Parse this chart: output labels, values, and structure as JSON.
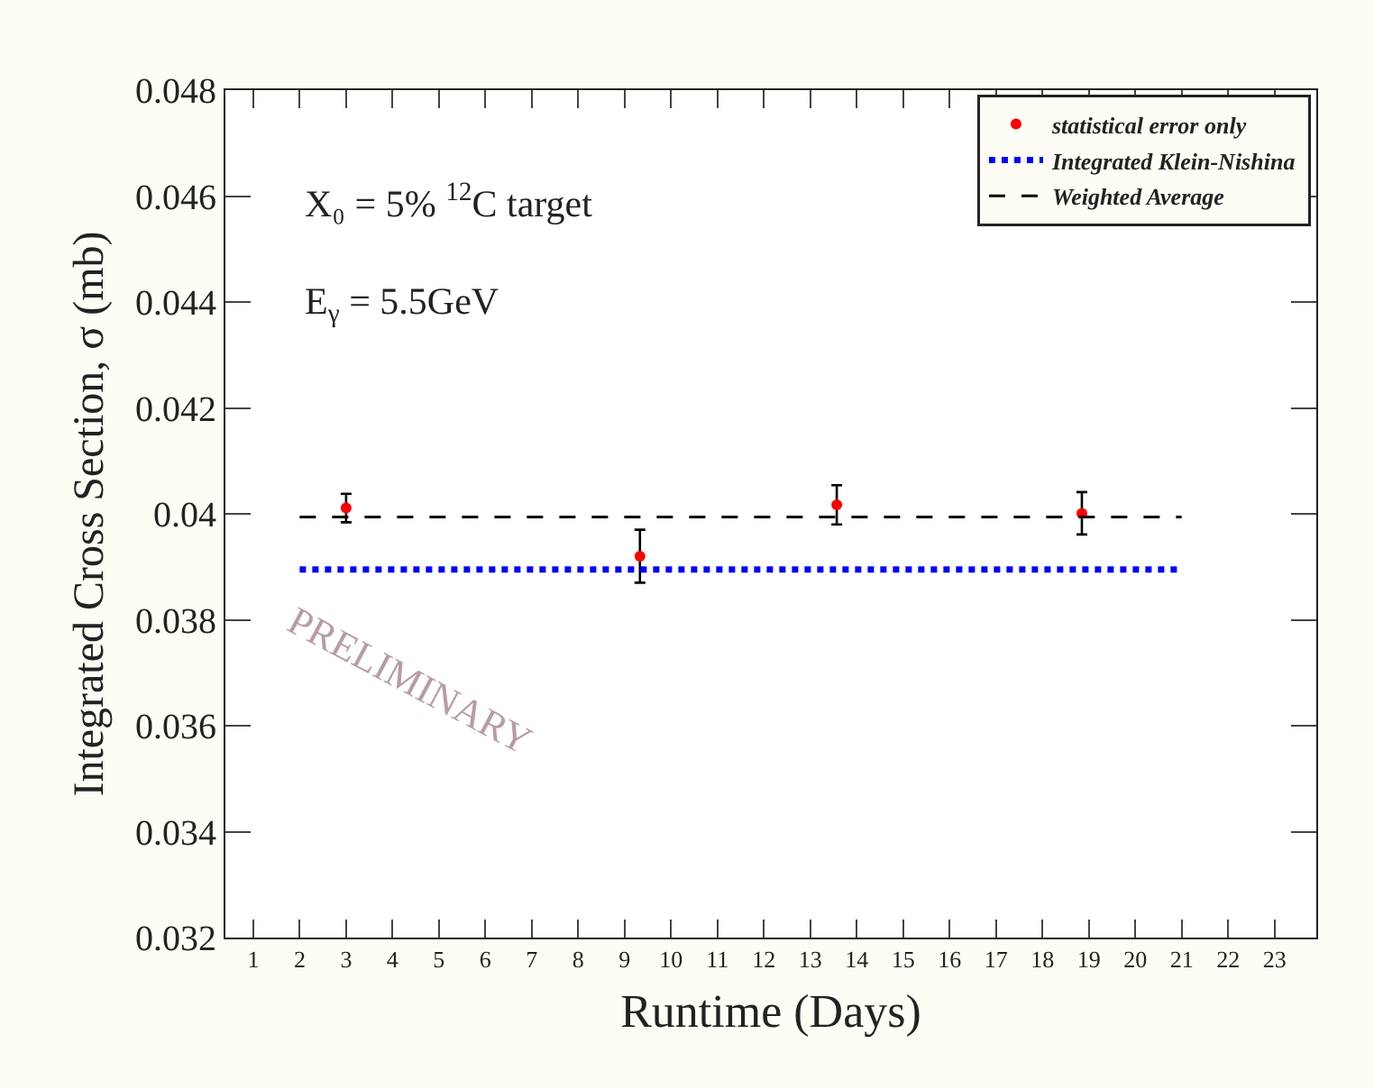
{
  "chart_data": {
    "type": "scatter",
    "xlabel": "Runtime (Days)",
    "ylabel": "Integrated Cross Section, σ (mb)",
    "xlim": [
      0.4,
      23.9
    ],
    "xticks": [
      1,
      2,
      3,
      4,
      5,
      6,
      7,
      8,
      9,
      10,
      11,
      12,
      13,
      14,
      15,
      16,
      17,
      18,
      19,
      20,
      21,
      22,
      23
    ],
    "ylim": [
      0.032,
      0.048
    ],
    "yticks": [
      0.032,
      0.034,
      0.036,
      0.038,
      0.04,
      0.042,
      0.044,
      0.046,
      0.048
    ],
    "series": [
      {
        "name": "statistical error only",
        "color": "#ff0000",
        "marker": "circle",
        "x": [
          3.0,
          9.33,
          13.57,
          18.85
        ],
        "values": [
          0.04011,
          0.0392,
          0.04017,
          0.04001
        ],
        "errors": [
          0.00027,
          0.0005,
          0.00037,
          0.0004
        ]
      },
      {
        "name": "Integrated Klein-Nishina",
        "type": "line",
        "color": "#0000ff",
        "line_style": "dotted",
        "x": [
          2,
          21
        ],
        "values": [
          0.03895,
          0.03895
        ]
      },
      {
        "name": "Weighted Average",
        "type": "line",
        "color": "#000000",
        "line_style": "dashed",
        "x": [
          2,
          21
        ],
        "values": [
          0.03994,
          0.03994
        ]
      }
    ],
    "annotations": [
      "X₀ = 5% $^{12}$C target",
      "E$_{γ}$ = 5.5GeV",
      "PRELIMINARY"
    ],
    "legend": "top right",
    "grid": false
  }
}
